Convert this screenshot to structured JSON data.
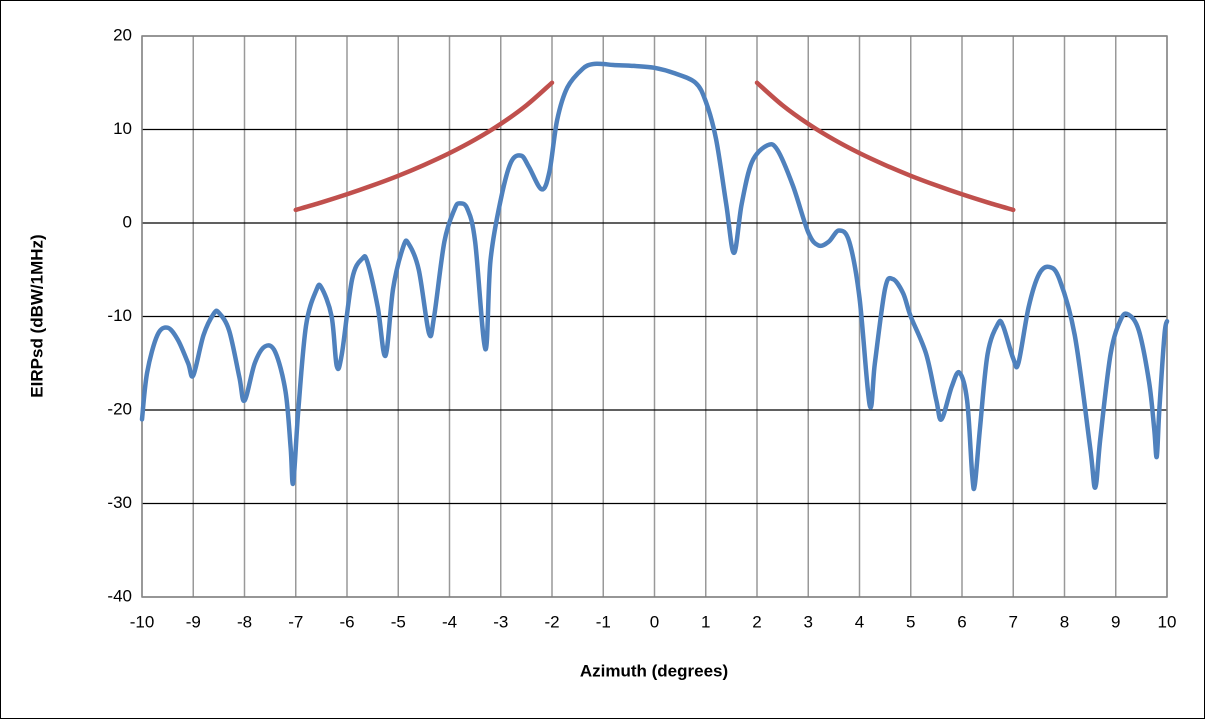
{
  "chart_data": {
    "type": "line",
    "xlabel": "Azimuth (degrees)",
    "ylabel": "EIRPsd (dBW/1MHz)",
    "xlim": [
      -10,
      10
    ],
    "xticks": [
      -10,
      -9,
      -8,
      -7,
      -6,
      -5,
      -4,
      -3,
      -2,
      -1,
      0,
      1,
      2,
      3,
      4,
      5,
      6,
      7,
      8,
      9,
      10
    ],
    "ylim": [
      -40,
      20
    ],
    "yticks": [
      -40,
      -30,
      -20,
      -10,
      0,
      10,
      20
    ],
    "grid": true,
    "series": [
      {
        "color": "#4f81bd",
        "x": [
          -10,
          -9.9,
          -9.7,
          -9.5,
          -9.3,
          -9.1,
          -9.0,
          -8.8,
          -8.6,
          -8.5,
          -8.3,
          -8.1,
          -8.0,
          -7.8,
          -7.6,
          -7.4,
          -7.2,
          -7.1,
          -7.05,
          -6.95,
          -6.8,
          -6.6,
          -6.5,
          -6.3,
          -6.2,
          -6.1,
          -5.9,
          -5.7,
          -5.6,
          -5.4,
          -5.25,
          -5.1,
          -4.9,
          -4.8,
          -4.6,
          -4.4,
          -4.3,
          -4.1,
          -3.9,
          -3.8,
          -3.65,
          -3.5,
          -3.3,
          -3.2,
          -3.0,
          -2.8,
          -2.6,
          -2.45,
          -2.2,
          -2.05,
          -1.9,
          -1.7,
          -1.4,
          -1.2,
          -1.0,
          -0.8,
          -0.4,
          0,
          0.4,
          0.8,
          1.0,
          1.2,
          1.4,
          1.55,
          1.7,
          1.9,
          2.2,
          2.4,
          2.7,
          3.0,
          3.2,
          3.4,
          3.6,
          3.8,
          4.0,
          4.2,
          4.3,
          4.5,
          4.65,
          4.85,
          5.0,
          5.3,
          5.5,
          5.6,
          5.8,
          5.95,
          6.1,
          6.2,
          6.25,
          6.35,
          6.5,
          6.7,
          6.8,
          7.0,
          7.1,
          7.3,
          7.5,
          7.7,
          7.9,
          8.2,
          8.5,
          8.6,
          8.7,
          8.9,
          9.1,
          9.25,
          9.45,
          9.65,
          9.75,
          9.8,
          9.85,
          9.95,
          10
        ],
        "values": [
          -21,
          -16,
          -12,
          -11.2,
          -12.5,
          -15,
          -16.3,
          -12,
          -9.7,
          -9.6,
          -11.5,
          -16.5,
          -19,
          -15,
          -13.2,
          -13.8,
          -18,
          -24,
          -27.8,
          -20,
          -11,
          -7.2,
          -6.9,
          -10,
          -15.3,
          -14,
          -6,
          -3.8,
          -4.2,
          -9,
          -14.2,
          -7,
          -2.5,
          -2.2,
          -5,
          -11.8,
          -10,
          -2,
          1.5,
          2.1,
          1.5,
          -2,
          -13.5,
          -4,
          2.5,
          6.5,
          7.2,
          6,
          3.6,
          5.5,
          11,
          14.5,
          16.5,
          17,
          17,
          16.9,
          16.8,
          16.6,
          16,
          15,
          13,
          9,
          2,
          -3.2,
          2,
          6.5,
          8.3,
          7.8,
          4,
          -1,
          -2.4,
          -2,
          -0.8,
          -2,
          -8,
          -19.5,
          -15,
          -7,
          -6,
          -7.5,
          -10,
          -14,
          -19,
          -21,
          -17.5,
          -16,
          -19,
          -27,
          -28,
          -22,
          -14,
          -10.8,
          -11,
          -14.5,
          -15,
          -9,
          -5.5,
          -4.7,
          -6,
          -12,
          -24,
          -28.3,
          -23,
          -14,
          -10.3,
          -9.8,
          -11.5,
          -17,
          -22,
          -25,
          -20,
          -12,
          -10.5
        ]
      },
      {
        "color": "#c0504d",
        "x": [
          -7,
          -6.5,
          -6,
          -5.5,
          -5,
          -4.5,
          -4,
          -3.5,
          -3,
          -2.5,
          -2,
          0,
          2,
          2.5,
          3,
          3.5,
          4,
          4.5,
          5,
          5.5,
          6,
          6.5,
          7
        ],
        "values": [
          1.4,
          2.2,
          3.07,
          4.02,
          5.05,
          6.2,
          7.47,
          8.92,
          10.6,
          12.58,
          15,
          null,
          15,
          12.58,
          10.6,
          8.92,
          7.47,
          6.2,
          5.05,
          4.02,
          3.07,
          2.2,
          1.4
        ]
      }
    ]
  }
}
